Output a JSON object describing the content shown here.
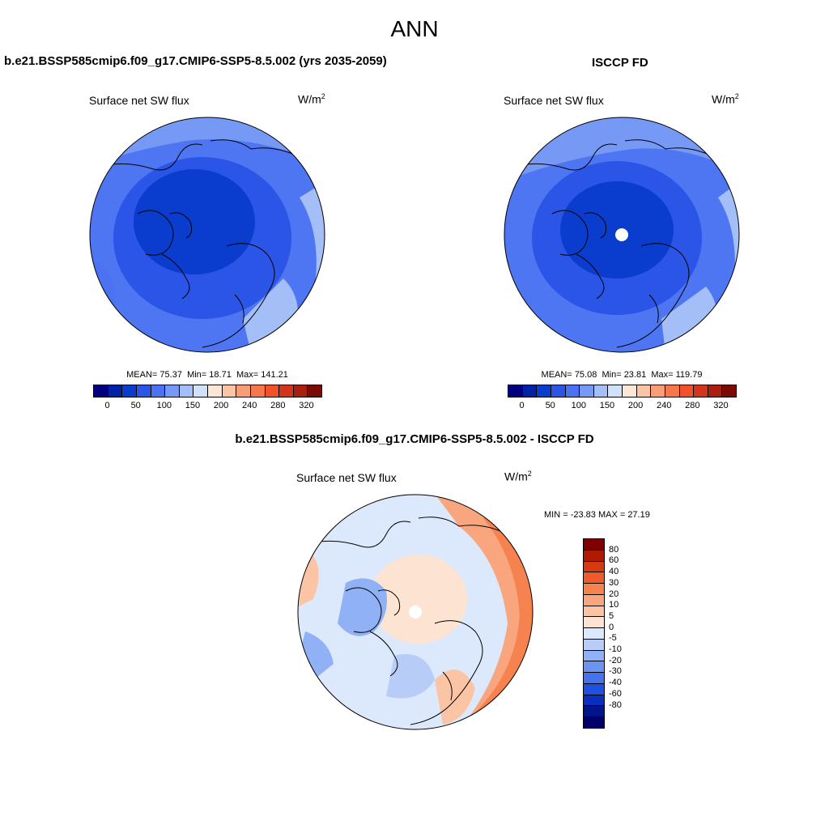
{
  "main_title": "ANN",
  "left_panel": {
    "title": "b.e21.BSSP585cmip6.f09_g17.CMIP6-SSP5-8.5.002 (yrs 2035-2059)",
    "variable": "Surface net SW flux",
    "units": "W/m",
    "units_sup": "2",
    "mean_label": "MEAN=",
    "mean": "75.37",
    "min_label": "Min=",
    "min": "18.71",
    "max_label": "Max=",
    "max": "141.21"
  },
  "right_panel": {
    "title": "ISCCP FD",
    "variable": "Surface net SW flux",
    "units": "W/m",
    "units_sup": "2",
    "mean_label": "MEAN=",
    "mean": "75.08",
    "min_label": "Min=",
    "min": "23.81",
    "max_label": "Max=",
    "max": "119.79"
  },
  "diff_panel": {
    "title": "b.e21.BSSP585cmip6.f09_g17.CMIP6-SSP5-8.5.002 - ISCCP FD",
    "variable": "Surface net SW flux",
    "units": "W/m",
    "units_sup": "2",
    "minmax": "MIN = -23.83 MAX =  27.19"
  },
  "colorbar_top": {
    "colors": [
      "#00007f",
      "#0022a6",
      "#0a3ccd",
      "#2a55e6",
      "#4a72f2",
      "#7699f5",
      "#a4bef8",
      "#d2e1fb",
      "#fde6d4",
      "#fbc4a4",
      "#f89d75",
      "#f7774c",
      "#f0522c",
      "#d4341c",
      "#a81f10",
      "#7a0a04"
    ],
    "tick_labels": [
      "0",
      "50",
      "100",
      "150",
      "200",
      "240",
      "280",
      "320"
    ]
  },
  "colorbar_diff": {
    "colors": [
      "#7f0000",
      "#b01a00",
      "#d83a10",
      "#f15a2a",
      "#f6824f",
      "#f9a57e",
      "#fbc4a4",
      "#fde4d2",
      "#dce8fb",
      "#b7cdf8",
      "#90b1f5",
      "#6b93f2",
      "#4573ee",
      "#1f50df",
      "#0a2ec0",
      "#00148c",
      "#00006a"
    ],
    "tick_labels": [
      "80",
      "60",
      "40",
      "30",
      "20",
      "10",
      "5",
      "0",
      "-5",
      "-10",
      "-20",
      "-30",
      "-40",
      "-60",
      "-80"
    ]
  }
}
